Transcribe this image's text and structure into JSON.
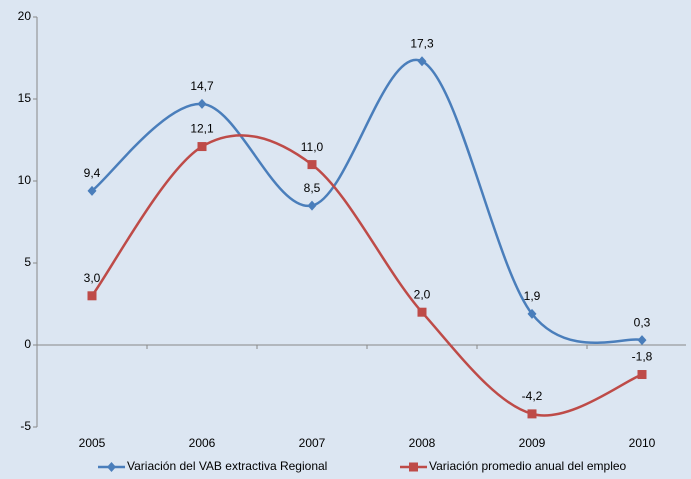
{
  "chart_data": {
    "type": "line",
    "categories": [
      "2005",
      "2006",
      "2007",
      "2008",
      "2009",
      "2010"
    ],
    "series": [
      {
        "name": "Variación del VAB extractiva Regional",
        "color": "#4a7ebb",
        "marker": "diamond",
        "values": [
          9.4,
          14.7,
          8.5,
          17.3,
          1.9,
          0.3
        ],
        "value_labels": [
          "9,4",
          "14,7",
          "8,5",
          "17,3",
          "1,9",
          "0,3"
        ]
      },
      {
        "name": "Variación promedio anual del empleo",
        "color": "#be4b48",
        "marker": "square",
        "values": [
          3.0,
          12.1,
          11.0,
          2.0,
          -4.2,
          -1.8
        ],
        "value_labels": [
          "3,0",
          "12,1",
          "11,0",
          "2,0",
          "-4,2",
          "-1,8"
        ]
      }
    ],
    "ylim": [
      -5,
      20
    ],
    "yticks": [
      -5,
      0,
      5,
      10,
      15,
      20
    ],
    "smooth": true,
    "legend": "bottom"
  }
}
